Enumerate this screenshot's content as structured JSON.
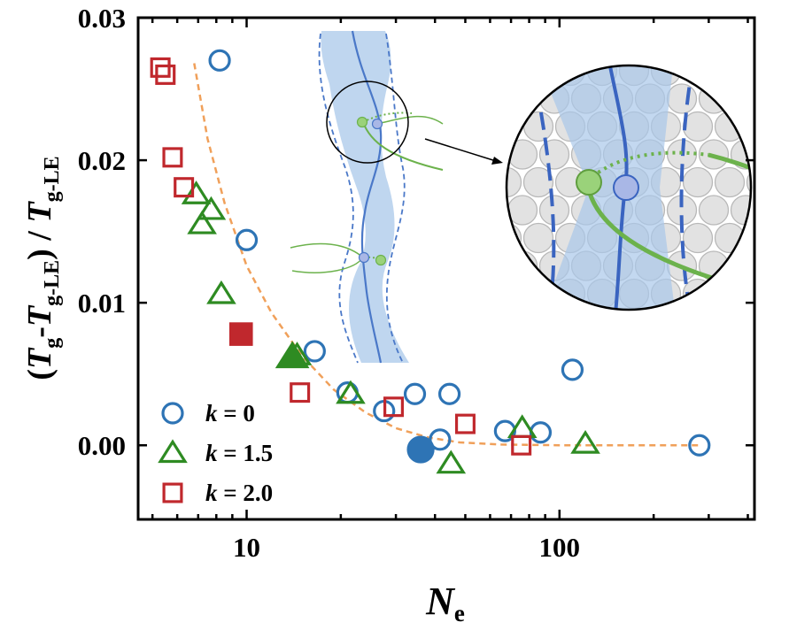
{
  "chart_data": {
    "type": "scatter",
    "x_scale": "log",
    "xlim": [
      4.5,
      420
    ],
    "ylim": [
      -0.0052,
      0.03
    ],
    "x_ticks": [
      10,
      100
    ],
    "x_tick_labels": [
      "10",
      "100"
    ],
    "y_ticks": [
      0.0,
      0.01,
      0.02,
      0.03
    ],
    "y_tick_labels": [
      "0.00",
      "0.01",
      "0.02",
      "0.03"
    ],
    "xlabel": {
      "main": "N",
      "sub": "e"
    },
    "ylabel": {
      "parts": [
        {
          "t": "(",
          "italic": false,
          "sub": false
        },
        {
          "t": "T",
          "italic": true,
          "sub": false
        },
        {
          "t": "g",
          "italic": false,
          "sub": true
        },
        {
          "t": "-",
          "italic": false,
          "sub": false
        },
        {
          "t": "T",
          "italic": true,
          "sub": false
        },
        {
          "t": "g-LE",
          "italic": false,
          "sub": true
        },
        {
          "t": ") / ",
          "italic": false,
          "sub": false
        },
        {
          "t": "T",
          "italic": true,
          "sub": false
        },
        {
          "t": "g-LE",
          "italic": false,
          "sub": true
        }
      ]
    },
    "grid": false,
    "legend_position": "bottom-left",
    "series": [
      {
        "name": "k = 0",
        "marker": "circle",
        "color": "#2e74b5",
        "points": [
          [
            8.2,
            0.027
          ],
          [
            10.0,
            0.0144
          ],
          [
            16.5,
            0.0066
          ],
          [
            21.0,
            0.0037
          ],
          [
            27.5,
            0.0024
          ],
          [
            34.5,
            0.0036
          ],
          [
            41.5,
            0.0004
          ],
          [
            44.5,
            0.0036
          ],
          [
            67,
            0.001
          ],
          [
            87,
            0.0009
          ],
          [
            110,
            0.0053
          ],
          [
            280,
            0.0
          ]
        ],
        "highlight": [
          [
            36.0,
            -0.0003
          ]
        ]
      },
      {
        "name": "k = 1.5",
        "marker": "triangle",
        "color": "#2e8b22",
        "points": [
          [
            6.9,
            0.0176
          ],
          [
            7.2,
            0.0155
          ],
          [
            7.7,
            0.0165
          ],
          [
            8.3,
            0.0106
          ],
          [
            14.5,
            0.0063
          ],
          [
            21.5,
            0.0036
          ],
          [
            45,
            -0.0013
          ],
          [
            76,
            0.0012
          ],
          [
            121,
            0.0001
          ]
        ],
        "highlight": [
          [
            14.0,
            0.0062
          ]
        ]
      },
      {
        "name": "k = 2.0",
        "marker": "square",
        "color": "#c0282d",
        "points": [
          [
            5.3,
            0.0265
          ],
          [
            5.5,
            0.026
          ],
          [
            5.8,
            0.0202
          ],
          [
            6.3,
            0.0181
          ],
          [
            14.8,
            0.0037
          ],
          [
            29.5,
            0.0027
          ],
          [
            50,
            0.0015
          ],
          [
            75.5,
            0.0
          ]
        ],
        "highlight": [
          [
            9.6,
            0.0078
          ]
        ]
      }
    ],
    "fit_curve": {
      "style": "dashed",
      "color": "#f0a05a",
      "points": [
        [
          6.8,
          0.0268
        ],
        [
          7.5,
          0.0215
        ],
        [
          8.5,
          0.017
        ],
        [
          10,
          0.0126
        ],
        [
          12,
          0.0093
        ],
        [
          15,
          0.0063
        ],
        [
          19,
          0.0039
        ],
        [
          24,
          0.0023
        ],
        [
          30,
          0.0012
        ],
        [
          38,
          0.00055
        ],
        [
          48,
          0.0002
        ],
        [
          65,
          5e-05
        ],
        [
          100,
          0.0
        ],
        [
          150,
          0.0
        ],
        [
          280,
          0.0
        ]
      ]
    },
    "legend": [
      {
        "marker": "circle",
        "label": "k = 0",
        "color": "#2e74b5"
      },
      {
        "marker": "triangle",
        "label": "k = 1.5",
        "color": "#2e8b22"
      },
      {
        "marker": "square",
        "label": "k = 2.0",
        "color": "#c0282d"
      }
    ]
  },
  "colors": {
    "blue": "#2e74b5",
    "green": "#2e8b22",
    "red": "#c0282d",
    "fit": "#f0a05a",
    "tube_fill": "#a9c8ea",
    "inset_line": "#4a78c8",
    "inset_green": "#6cb24c",
    "bead_fill": "#e2e2e2"
  }
}
